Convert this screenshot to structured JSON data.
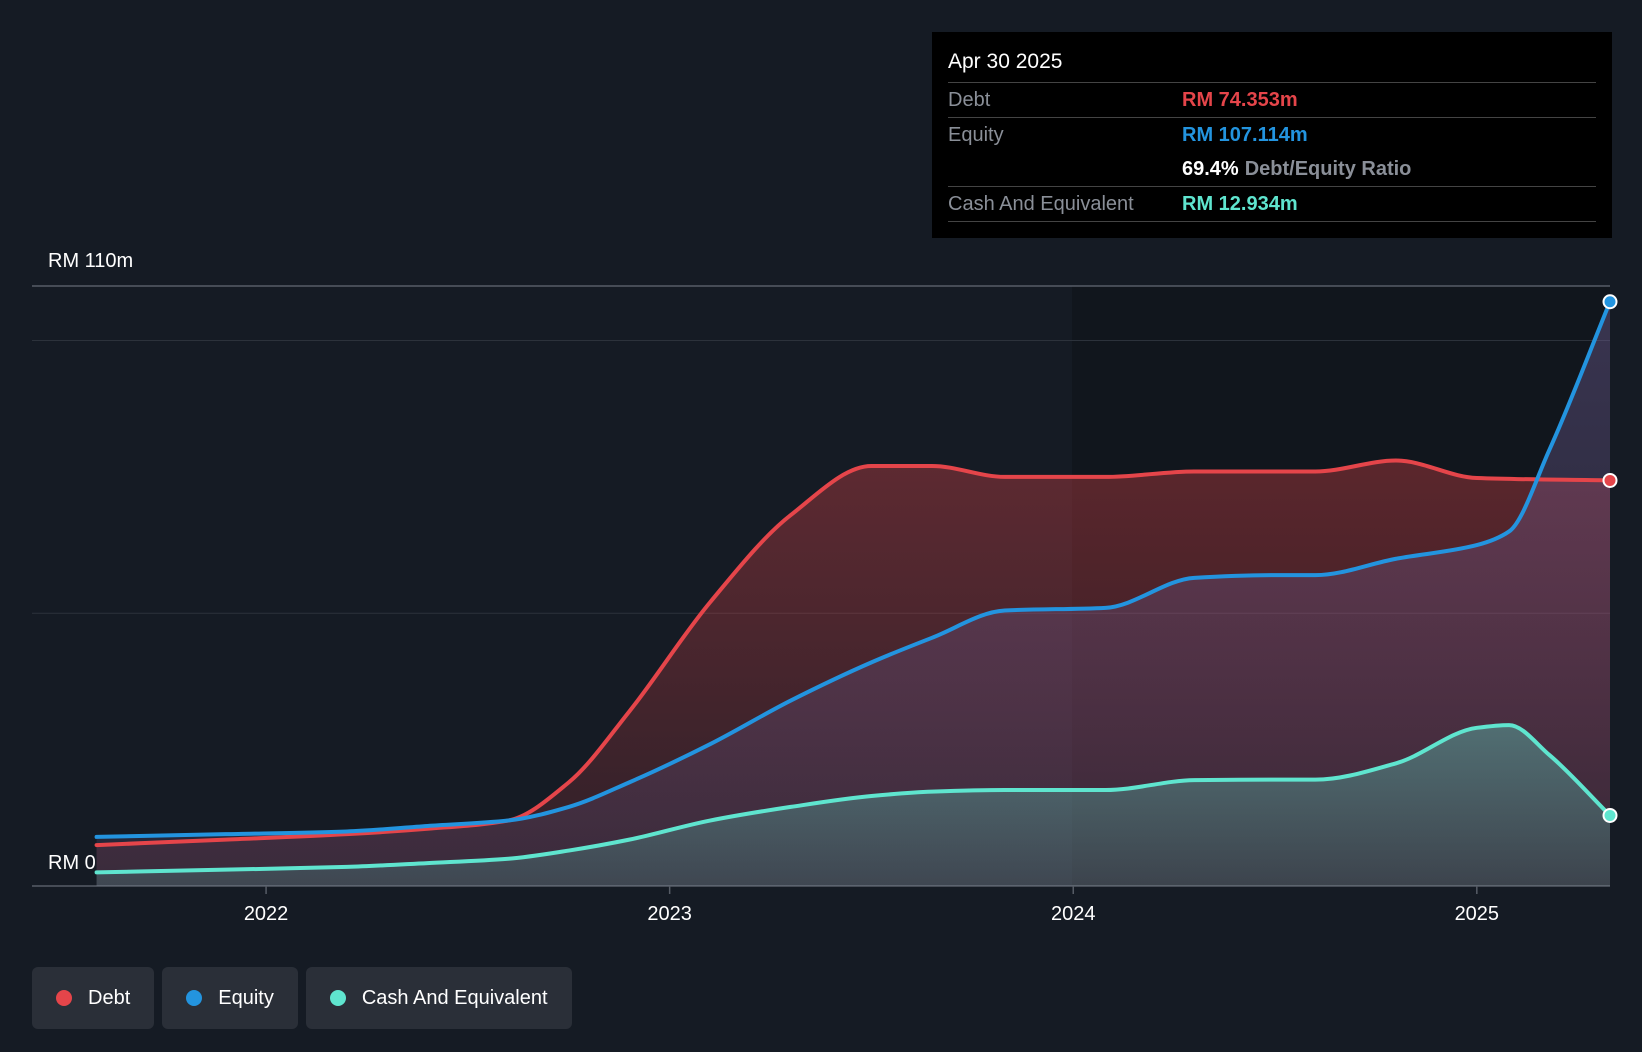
{
  "chart_data": {
    "type": "area",
    "title": "",
    "ylabel": "",
    "xlabel": "",
    "currency_prefix": "RM",
    "y_axis_labels": {
      "top": "RM 110m",
      "bottom": "RM 0"
    },
    "ylim": [
      0,
      110
    ],
    "x_ticks": [
      "2022",
      "2023",
      "2024",
      "2025"
    ],
    "x_tick_positions": [
      2022.0,
      2023.0,
      2024.0,
      2025.0
    ],
    "xlim": [
      2021.42,
      2025.33
    ],
    "series": [
      {
        "name": "Debt",
        "color": "#e5454a",
        "x": [
          2021.58,
          2021.9,
          2022.2,
          2022.4,
          2022.6,
          2022.75,
          2022.9,
          2023.1,
          2023.3,
          2023.5,
          2023.65,
          2023.83,
          2024.08,
          2024.3,
          2024.5,
          2024.6,
          2024.8,
          2025.0,
          2025.33
        ],
        "values": [
          7.5,
          8.5,
          9.5,
          10.5,
          12,
          19,
          32,
          52,
          68,
          77,
          77,
          75,
          75,
          76,
          76,
          76,
          78,
          74.8,
          74.353
        ]
      },
      {
        "name": "Equity",
        "color": "#2394df",
        "x": [
          2021.58,
          2021.9,
          2022.2,
          2022.4,
          2022.6,
          2022.75,
          2022.9,
          2023.1,
          2023.3,
          2023.5,
          2023.65,
          2023.83,
          2024.08,
          2024.3,
          2024.5,
          2024.6,
          2024.8,
          2025.0,
          2025.08,
          2025.18,
          2025.33
        ],
        "values": [
          9,
          9.5,
          10,
          11,
          12,
          14.5,
          19,
          26,
          34,
          41,
          45.5,
          50.5,
          51,
          56.5,
          57,
          57,
          60,
          62.5,
          65,
          80,
          107.114
        ]
      },
      {
        "name": "Cash And Equivalent",
        "color": "#5fe5cf",
        "x": [
          2021.58,
          2021.9,
          2022.2,
          2022.4,
          2022.6,
          2022.75,
          2022.9,
          2023.1,
          2023.3,
          2023.5,
          2023.65,
          2023.83,
          2024.08,
          2024.3,
          2024.5,
          2024.6,
          2024.8,
          2025.0,
          2025.08,
          2025.18,
          2025.33
        ],
        "values": [
          2.5,
          3.0,
          3.5,
          4.2,
          5.0,
          6.5,
          8.5,
          12,
          14.5,
          16.5,
          17.3,
          17.6,
          17.6,
          19.4,
          19.5,
          19.5,
          22.5,
          29,
          29.5,
          24,
          12.934
        ]
      }
    ]
  },
  "tooltip": {
    "date": "Apr 30 2025",
    "debt_label": "Debt",
    "debt_value": "RM 74.353m",
    "equity_label": "Equity",
    "equity_value": "RM 107.114m",
    "ratio_value": "69.4%",
    "ratio_label": "Debt/Equity Ratio",
    "cash_label": "Cash And Equivalent",
    "cash_value": "RM 12.934m"
  },
  "legend": {
    "debt": "Debt",
    "equity": "Equity",
    "cash": "Cash And Equivalent"
  },
  "colors": {
    "debt": "#e5454a",
    "equity": "#2394df",
    "cash": "#5fe5cf",
    "background": "#151b24"
  }
}
